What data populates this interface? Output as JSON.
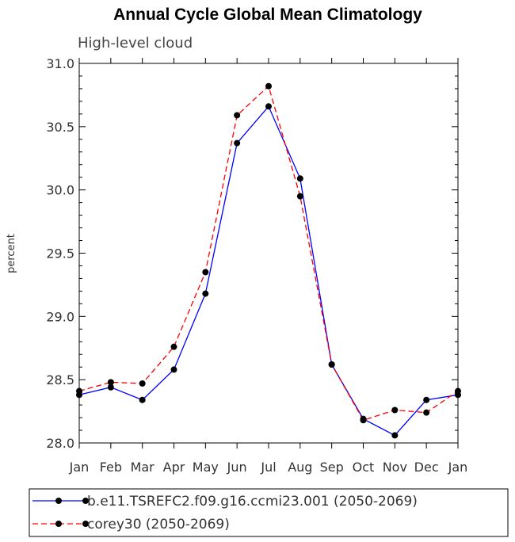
{
  "chart_data": {
    "type": "line",
    "title": "Annual Cycle Global Mean Climatology",
    "subtitle": "High-level cloud",
    "ylabel": "percent",
    "xlabel": "",
    "categories": [
      "Jan",
      "Feb",
      "Mar",
      "Apr",
      "May",
      "Jun",
      "Jul",
      "Aug",
      "Sep",
      "Oct",
      "Nov",
      "Dec",
      "Jan"
    ],
    "ylim": [
      28.0,
      31.0
    ],
    "yticks": [
      "28.0",
      "28.5",
      "29.0",
      "29.5",
      "30.0",
      "30.5",
      "31.0"
    ],
    "grid": false,
    "legend_position": "bottom",
    "series": [
      {
        "name": "b.e11.TSREFC2.f09.g16.ccmi23.001 (2050-2069)",
        "color": "#0000ff",
        "line_style": "solid",
        "marker": "filled-circle",
        "values": [
          28.38,
          28.44,
          28.34,
          28.58,
          29.18,
          30.37,
          30.66,
          30.09,
          28.62,
          28.19,
          28.06,
          28.34,
          28.38
        ]
      },
      {
        "name": "corey30 (2050-2069)",
        "color": "#ff0000",
        "line_style": "dashed",
        "marker": "filled-circle",
        "values": [
          28.41,
          28.48,
          28.47,
          28.76,
          29.35,
          30.59,
          30.82,
          29.95,
          28.62,
          28.18,
          28.26,
          28.24,
          28.41
        ]
      }
    ]
  }
}
